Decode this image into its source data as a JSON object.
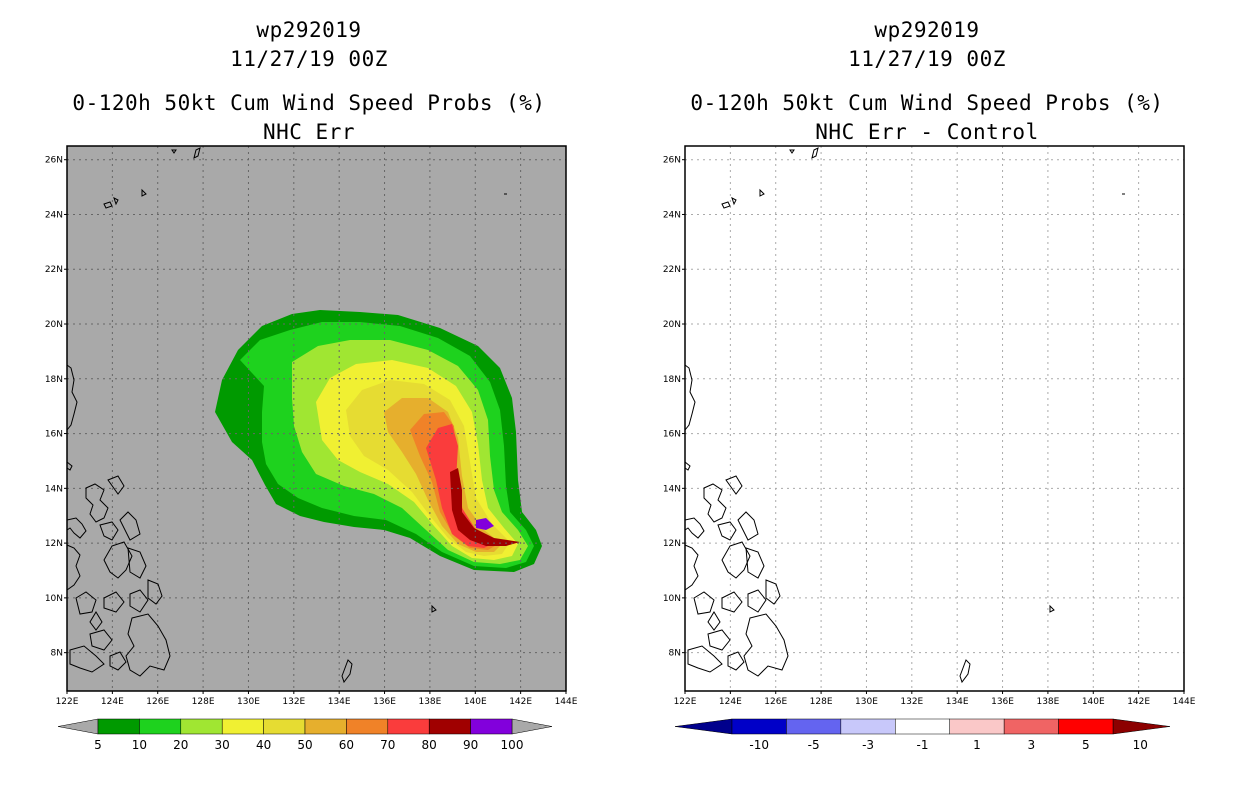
{
  "panels": [
    {
      "storm_id": "wp292019",
      "datetime": "11/27/19 00Z",
      "product": "0-120h 50kt Cum Wind Speed Probs (%)",
      "subtitle": "NHC Err",
      "background_color": "#a9a9a9"
    },
    {
      "storm_id": "wp292019",
      "datetime": "11/27/19 00Z",
      "product": "0-120h 50kt Cum Wind Speed Probs (%)",
      "subtitle": "NHC Err - Control",
      "background_color": "#ffffff"
    }
  ],
  "axes": {
    "lat_labels": [
      "26N",
      "24N",
      "22N",
      "20N",
      "18N",
      "16N",
      "14N",
      "12N",
      "10N",
      "8N"
    ],
    "lon_labels": [
      "122E",
      "124E",
      "126E",
      "128E",
      "130E",
      "132E",
      "134E",
      "136E",
      "138E",
      "140E",
      "142E",
      "144E"
    ],
    "lat_range": [
      6.6,
      26.5
    ],
    "lon_range": [
      122,
      144
    ]
  },
  "colorbar_left": {
    "labels": [
      "5",
      "10",
      "20",
      "30",
      "40",
      "50",
      "60",
      "70",
      "80",
      "90",
      "100"
    ],
    "colors": [
      "#009a00",
      "#1ed21e",
      "#a0e632",
      "#f0f032",
      "#e6dc32",
      "#e6af2d",
      "#f08228",
      "#fa3c3c",
      "#a00000",
      "#8200dc"
    ],
    "end_color": "#a9a9a9"
  },
  "colorbar_right": {
    "labels": [
      "-10",
      "-5",
      "-3",
      "-1",
      "1",
      "3",
      "5",
      "10"
    ],
    "colors": [
      "#0000c8",
      "#6464f0",
      "#c8c8fa",
      "#ffffff",
      "#fac8c8",
      "#f06464",
      "#ff0000"
    ],
    "low_end_color": "#00008c",
    "high_end_color": "#8c0000"
  }
}
